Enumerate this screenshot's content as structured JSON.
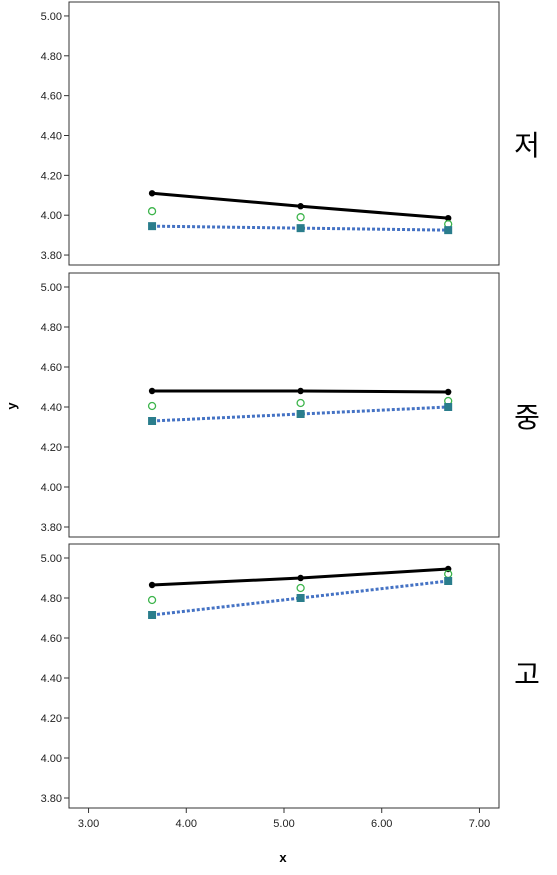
{
  "chart_data": {
    "type": "line",
    "xlabel": "x",
    "ylabel": "y",
    "xlim": [
      2.8,
      7.2
    ],
    "xticks": [
      "3.00",
      "4.00",
      "5.00",
      "6.00",
      "7.00"
    ],
    "ylim": [
      3.75,
      5.07
    ],
    "yticks": [
      "3.80",
      "4.00",
      "4.20",
      "4.40",
      "4.60",
      "4.80",
      "5.00"
    ],
    "grid": false,
    "x": [
      3.65,
      5.17,
      6.68
    ],
    "panels": [
      {
        "label": "저",
        "series": [
          {
            "style": "solid-black-filled-circle",
            "values": [
              4.11,
              4.045,
              3.985
            ]
          },
          {
            "style": "green-open-circle",
            "values": [
              4.02,
              3.99,
              3.955
            ]
          },
          {
            "style": "blue-dotted-teal-square",
            "values": [
              3.945,
              3.935,
              3.925
            ]
          }
        ]
      },
      {
        "label": "중",
        "series": [
          {
            "style": "solid-black-filled-circle",
            "values": [
              4.48,
              4.48,
              4.475
            ]
          },
          {
            "style": "green-open-circle",
            "values": [
              4.405,
              4.42,
              4.43
            ]
          },
          {
            "style": "blue-dotted-teal-square",
            "values": [
              4.33,
              4.365,
              4.4
            ]
          }
        ]
      },
      {
        "label": "고",
        "series": [
          {
            "style": "solid-black-filled-circle",
            "values": [
              4.865,
              4.9,
              4.945
            ]
          },
          {
            "style": "green-open-circle",
            "values": [
              4.79,
              4.85,
              4.92
            ]
          },
          {
            "style": "blue-dotted-teal-square",
            "values": [
              4.715,
              4.8,
              4.885
            ]
          }
        ]
      }
    ],
    "colors": {
      "solid": "#000000",
      "open_circle": "#3cb44b",
      "dotted_line": "#4472c4",
      "square_fill": "#2a7d8c"
    }
  }
}
